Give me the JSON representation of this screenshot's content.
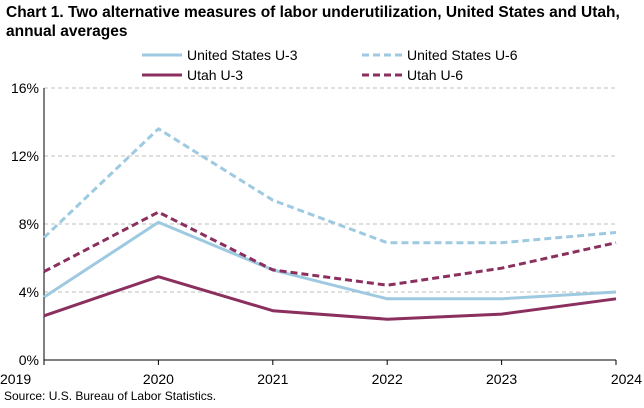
{
  "chart_data": {
    "type": "line",
    "title": "Chart 1. Two alternative measures of labor underutilization, United States and Utah, annual averages",
    "xlabel": "",
    "ylabel": "",
    "x": [
      "2019",
      "2020",
      "2021",
      "2022",
      "2023",
      "2024"
    ],
    "ylim": [
      0,
      16
    ],
    "yticks": [
      0,
      4,
      8,
      12,
      16
    ],
    "ytick_labels": [
      "0%",
      "4%",
      "8%",
      "12%",
      "16%"
    ],
    "grid": "horizontal dashed",
    "legend": "top",
    "series": [
      {
        "name": "United States U-3",
        "color": "#9ecae1",
        "dashed": false,
        "values": [
          3.7,
          8.1,
          5.3,
          3.6,
          3.6,
          4.0
        ]
      },
      {
        "name": "United States U-6",
        "color": "#9ecae1",
        "dashed": true,
        "values": [
          7.2,
          13.6,
          9.4,
          6.9,
          6.9,
          7.5
        ]
      },
      {
        "name": "Utah U-3",
        "color": "#8b2f5e",
        "dashed": false,
        "values": [
          2.6,
          4.9,
          2.9,
          2.4,
          2.7,
          3.6
        ]
      },
      {
        "name": "Utah U-6",
        "color": "#8b2f5e",
        "dashed": true,
        "values": [
          5.2,
          8.7,
          5.3,
          4.4,
          5.4,
          6.9
        ]
      }
    ],
    "source": "Source: U.S. Bureau of Labor Statistics."
  }
}
